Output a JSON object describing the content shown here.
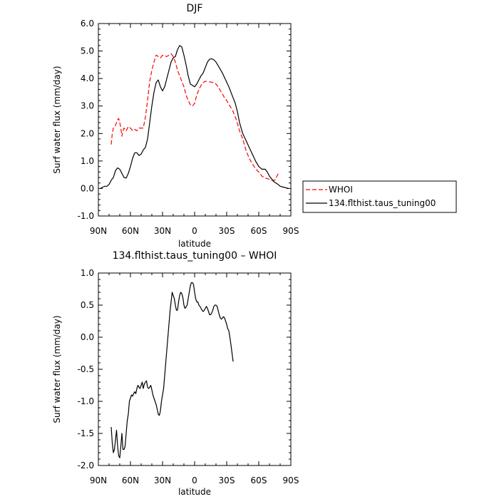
{
  "chart_data": [
    {
      "type": "line",
      "title": "DJF",
      "xlabel": "latitude",
      "ylabel": "Surf water flux (mm/day)",
      "xlim": [
        90,
        -90
      ],
      "ylim": [
        -1.0,
        6.0
      ],
      "xtick_values": [
        90,
        60,
        30,
        0,
        -30,
        -60,
        -90
      ],
      "xtick_labels": [
        "90N",
        "60N",
        "30N",
        "0",
        "30S",
        "60S",
        "90S"
      ],
      "ytick_values": [
        -1,
        0,
        1,
        2,
        3,
        4,
        5,
        6
      ],
      "ytick_labels": [
        "-1.0",
        "0.0",
        "1.0",
        "2.0",
        "3.0",
        "4.0",
        "5.0",
        "6.0"
      ],
      "legend": "outside-right",
      "series": [
        {
          "name": "WHOI",
          "color": "#ff0000",
          "style": "dashed",
          "points": [
            [
              78,
              1.6
            ],
            [
              77,
              2.0
            ],
            [
              76,
              2.2
            ],
            [
              74,
              2.3
            ],
            [
              72,
              2.5
            ],
            [
              71,
              2.55
            ],
            [
              70,
              2.4
            ],
            [
              69,
              2.2
            ],
            [
              68,
              1.9
            ],
            [
              67,
              2.1
            ],
            [
              66,
              2.2
            ],
            [
              64,
              2.1
            ],
            [
              62,
              2.25
            ],
            [
              60,
              2.2
            ],
            [
              58,
              2.1
            ],
            [
              56,
              2.15
            ],
            [
              54,
              2.1
            ],
            [
              52,
              2.2
            ],
            [
              50,
              2.2
            ],
            [
              48,
              2.2
            ],
            [
              46,
              2.6
            ],
            [
              44,
              3.2
            ],
            [
              42,
              3.9
            ],
            [
              40,
              4.3
            ],
            [
              38,
              4.6
            ],
            [
              36,
              4.85
            ],
            [
              34,
              4.8
            ],
            [
              32,
              4.75
            ],
            [
              30,
              4.85
            ],
            [
              28,
              4.82
            ],
            [
              26,
              4.8
            ],
            [
              24,
              4.85
            ],
            [
              22,
              4.9
            ],
            [
              20,
              4.8
            ],
            [
              18,
              4.6
            ],
            [
              16,
              4.3
            ],
            [
              14,
              4.1
            ],
            [
              12,
              3.9
            ],
            [
              10,
              3.7
            ],
            [
              8,
              3.4
            ],
            [
              6,
              3.2
            ],
            [
              4,
              3.05
            ],
            [
              2,
              3.0
            ],
            [
              0,
              3.1
            ],
            [
              -2,
              3.4
            ],
            [
              -4,
              3.6
            ],
            [
              -6,
              3.75
            ],
            [
              -8,
              3.85
            ],
            [
              -10,
              3.9
            ],
            [
              -14,
              3.88
            ],
            [
              -18,
              3.85
            ],
            [
              -20,
              3.8
            ],
            [
              -22,
              3.7
            ],
            [
              -25,
              3.5
            ],
            [
              -28,
              3.3
            ],
            [
              -30,
              3.2
            ],
            [
              -33,
              3.0
            ],
            [
              -36,
              2.8
            ],
            [
              -39,
              2.5
            ],
            [
              -42,
              2.1
            ],
            [
              -45,
              1.8
            ],
            [
              -48,
              1.4
            ],
            [
              -51,
              1.1
            ],
            [
              -54,
              0.9
            ],
            [
              -57,
              0.72
            ],
            [
              -60,
              0.6
            ],
            [
              -63,
              0.45
            ],
            [
              -66,
              0.38
            ],
            [
              -69,
              0.35
            ],
            [
              -72,
              0.3
            ],
            [
              -75,
              0.3
            ],
            [
              -77,
              0.45
            ],
            [
              -79,
              0.6
            ]
          ]
        },
        {
          "name": "134.flthist.taus_tuning00",
          "color": "#000000",
          "style": "solid",
          "points": [
            [
              88,
              0.0
            ],
            [
              86,
              0.05
            ],
            [
              84,
              0.08
            ],
            [
              82,
              0.08
            ],
            [
              80,
              0.15
            ],
            [
              78,
              0.3
            ],
            [
              76,
              0.4
            ],
            [
              74,
              0.65
            ],
            [
              72,
              0.75
            ],
            [
              70,
              0.7
            ],
            [
              68,
              0.55
            ],
            [
              66,
              0.4
            ],
            [
              64,
              0.38
            ],
            [
              62,
              0.55
            ],
            [
              60,
              0.8
            ],
            [
              58,
              1.1
            ],
            [
              56,
              1.3
            ],
            [
              54,
              1.3
            ],
            [
              52,
              1.2
            ],
            [
              50,
              1.25
            ],
            [
              48,
              1.4
            ],
            [
              46,
              1.5
            ],
            [
              44,
              1.8
            ],
            [
              42,
              2.4
            ],
            [
              40,
              3.0
            ],
            [
              38,
              3.5
            ],
            [
              36,
              3.85
            ],
            [
              34,
              3.95
            ],
            [
              32,
              3.7
            ],
            [
              30,
              3.55
            ],
            [
              28,
              3.7
            ],
            [
              26,
              4.0
            ],
            [
              24,
              4.3
            ],
            [
              22,
              4.6
            ],
            [
              20,
              4.75
            ],
            [
              18,
              4.8
            ],
            [
              16,
              5.05
            ],
            [
              14,
              5.2
            ],
            [
              12,
              5.15
            ],
            [
              10,
              4.85
            ],
            [
              8,
              4.5
            ],
            [
              6,
              4.1
            ],
            [
              4,
              3.8
            ],
            [
              2,
              3.75
            ],
            [
              0,
              3.7
            ],
            [
              -2,
              3.8
            ],
            [
              -4,
              3.95
            ],
            [
              -6,
              4.1
            ],
            [
              -8,
              4.2
            ],
            [
              -10,
              4.4
            ],
            [
              -12,
              4.6
            ],
            [
              -14,
              4.7
            ],
            [
              -16,
              4.72
            ],
            [
              -18,
              4.68
            ],
            [
              -20,
              4.6
            ],
            [
              -23,
              4.4
            ],
            [
              -26,
              4.2
            ],
            [
              -29,
              3.95
            ],
            [
              -32,
              3.7
            ],
            [
              -35,
              3.4
            ],
            [
              -38,
              3.1
            ],
            [
              -40,
              2.8
            ],
            [
              -42,
              2.4
            ],
            [
              -45,
              2.0
            ],
            [
              -48,
              1.75
            ],
            [
              -51,
              1.5
            ],
            [
              -54,
              1.25
            ],
            [
              -57,
              1.0
            ],
            [
              -60,
              0.8
            ],
            [
              -63,
              0.7
            ],
            [
              -66,
              0.7
            ],
            [
              -68,
              0.6
            ],
            [
              -70,
              0.45
            ],
            [
              -72,
              0.35
            ],
            [
              -74,
              0.25
            ],
            [
              -76,
              0.2
            ],
            [
              -78,
              0.15
            ],
            [
              -80,
              0.08
            ],
            [
              -83,
              0.05
            ],
            [
              -86,
              0.02
            ],
            [
              -88,
              0.0
            ]
          ]
        }
      ]
    },
    {
      "type": "line",
      "title": "134.flthist.taus_tuning00 – WHOI",
      "xlabel": "latitude",
      "ylabel": "Surf water flux (mm/day)",
      "xlim": [
        90,
        -90
      ],
      "ylim": [
        -2.0,
        1.0
      ],
      "xtick_values": [
        90,
        60,
        30,
        0,
        -30,
        -60,
        -90
      ],
      "xtick_labels": [
        "90N",
        "60N",
        "30N",
        "0",
        "30S",
        "60S",
        "90S"
      ],
      "ytick_values": [
        -2,
        -1.5,
        -1,
        -0.5,
        0,
        0.5,
        1
      ],
      "ytick_labels": [
        "-2.0",
        "-1.5",
        "-1.0",
        "-0.5",
        "0.0",
        "0.5",
        "1.0"
      ],
      "series": [
        {
          "color": "#000000",
          "style": "solid",
          "points": [
            [
              78,
              -1.4
            ],
            [
              77,
              -1.65
            ],
            [
              76,
              -1.8
            ],
            [
              75,
              -1.75
            ],
            [
              74,
              -1.6
            ],
            [
              73,
              -1.45
            ],
            [
              72,
              -1.7
            ],
            [
              71,
              -1.85
            ],
            [
              70,
              -1.88
            ],
            [
              69,
              -1.7
            ],
            [
              68,
              -1.5
            ],
            [
              67,
              -1.75
            ],
            [
              66,
              -1.75
            ],
            [
              65,
              -1.7
            ],
            [
              64,
              -1.5
            ],
            [
              63,
              -1.3
            ],
            [
              62,
              -1.2
            ],
            [
              61,
              -1.0
            ],
            [
              60,
              -0.95
            ],
            [
              59,
              -0.9
            ],
            [
              58,
              -0.92
            ],
            [
              57,
              -0.88
            ],
            [
              56,
              -0.85
            ],
            [
              55,
              -0.88
            ],
            [
              54,
              -0.8
            ],
            [
              53,
              -0.75
            ],
            [
              52,
              -0.78
            ],
            [
              51,
              -0.8
            ],
            [
              50,
              -0.75
            ],
            [
              49,
              -0.7
            ],
            [
              48,
              -0.8
            ],
            [
              47,
              -0.73
            ],
            [
              46,
              -0.7
            ],
            [
              45,
              -0.68
            ],
            [
              44,
              -0.78
            ],
            [
              43,
              -0.8
            ],
            [
              42,
              -0.78
            ],
            [
              41,
              -0.75
            ],
            [
              40,
              -0.82
            ],
            [
              39,
              -0.9
            ],
            [
              38,
              -0.95
            ],
            [
              37,
              -1.0
            ],
            [
              36,
              -1.05
            ],
            [
              35,
              -1.12
            ],
            [
              34,
              -1.2
            ],
            [
              33,
              -1.22
            ],
            [
              32,
              -1.15
            ],
            [
              31,
              -1.0
            ],
            [
              30,
              -0.9
            ],
            [
              29,
              -0.8
            ],
            [
              28,
              -0.6
            ],
            [
              27,
              -0.4
            ],
            [
              26,
              -0.2
            ],
            [
              25,
              0.0
            ],
            [
              24,
              0.2
            ],
            [
              23,
              0.4
            ],
            [
              22,
              0.55
            ],
            [
              21,
              0.7
            ],
            [
              20,
              0.65
            ],
            [
              19,
              0.6
            ],
            [
              18,
              0.5
            ],
            [
              17,
              0.42
            ],
            [
              16,
              0.42
            ],
            [
              15,
              0.55
            ],
            [
              14,
              0.65
            ],
            [
              13,
              0.7
            ],
            [
              12,
              0.68
            ],
            [
              11,
              0.62
            ],
            [
              10,
              0.5
            ],
            [
              9,
              0.45
            ],
            [
              8,
              0.47
            ],
            [
              7,
              0.5
            ],
            [
              6,
              0.6
            ],
            [
              5,
              0.7
            ],
            [
              4,
              0.8
            ],
            [
              3,
              0.85
            ],
            [
              2,
              0.85
            ],
            [
              1,
              0.82
            ],
            [
              0,
              0.7
            ],
            [
              -1,
              0.6
            ],
            [
              -2,
              0.55
            ],
            [
              -3,
              0.55
            ],
            [
              -4,
              0.5
            ],
            [
              -5,
              0.48
            ],
            [
              -6,
              0.45
            ],
            [
              -7,
              0.42
            ],
            [
              -8,
              0.4
            ],
            [
              -9,
              0.42
            ],
            [
              -10,
              0.45
            ],
            [
              -11,
              0.48
            ],
            [
              -12,
              0.45
            ],
            [
              -13,
              0.4
            ],
            [
              -14,
              0.35
            ],
            [
              -15,
              0.35
            ],
            [
              -16,
              0.38
            ],
            [
              -17,
              0.42
            ],
            [
              -18,
              0.48
            ],
            [
              -19,
              0.5
            ],
            [
              -20,
              0.5
            ],
            [
              -21,
              0.48
            ],
            [
              -22,
              0.42
            ],
            [
              -23,
              0.35
            ],
            [
              -24,
              0.3
            ],
            [
              -25,
              0.28
            ],
            [
              -26,
              0.3
            ],
            [
              -27,
              0.32
            ],
            [
              -28,
              0.3
            ],
            [
              -29,
              0.25
            ],
            [
              -30,
              0.2
            ],
            [
              -31,
              0.13
            ],
            [
              -32,
              0.1
            ],
            [
              -33,
              0.0
            ],
            [
              -34,
              -0.12
            ],
            [
              -35,
              -0.25
            ],
            [
              -36,
              -0.38
            ]
          ]
        }
      ]
    }
  ]
}
